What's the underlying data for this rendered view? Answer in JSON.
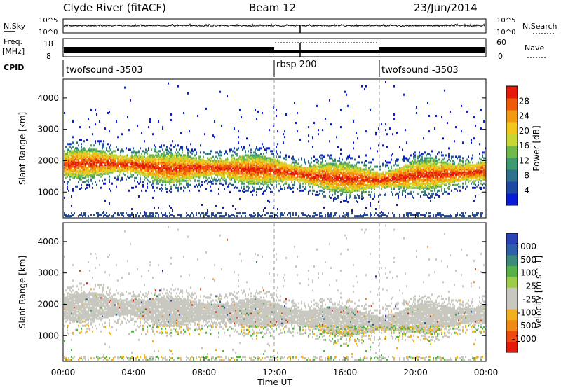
{
  "header": {
    "title": "Clyde River (fitACF)",
    "beam": "Beam 12",
    "date": "23/Jun/2014"
  },
  "noise_panel": {
    "left_label": "N.Sky",
    "left_ticks": [
      "10^5",
      "10^0"
    ],
    "right_label": "N.Search",
    "right_ticks": [
      "10^5",
      "10^0"
    ]
  },
  "freq_panel": {
    "left_label_1": "Freq.",
    "left_label_2": "[MHz]",
    "left_ticks": [
      "18",
      "8"
    ],
    "right_label": "Nave",
    "right_ticks": [
      "60",
      "0"
    ]
  },
  "cpid_panel": {
    "label": "CPID",
    "segments": [
      {
        "name": "twofsound -3503",
        "start_hour": 0,
        "end_hour": 12
      },
      {
        "name": "rbsp 200",
        "start_hour": 12,
        "end_hour": 18
      },
      {
        "name": "twofsound -3503",
        "start_hour": 18,
        "end_hour": 24
      }
    ]
  },
  "x_axis": {
    "label": "Time UT",
    "ticks": [
      "00:00",
      "04:00",
      "08:00",
      "12:00",
      "16:00",
      "20:00",
      "00:00"
    ],
    "range_hours": [
      0,
      24
    ]
  },
  "chart_data": [
    {
      "type": "heatmap",
      "title": "Power",
      "ylabel": "Slant Range [km]",
      "yticks": [
        1000,
        2000,
        3000,
        4000
      ],
      "ylim": [
        180,
        4600
      ],
      "colorbar_label": "Power [dB]",
      "colorbar_ticks": [
        4,
        8,
        12,
        16,
        20,
        24,
        28
      ],
      "colorbar_range": [
        0,
        32
      ],
      "colorbar_colors": [
        "#0a1bd6",
        "#1f4aa3",
        "#2f6f8f",
        "#3f9a6f",
        "#6fb84a",
        "#c8d634",
        "#f2c61c",
        "#f29a12",
        "#ee5a0a",
        "#e61a0a"
      ],
      "band_center_km": [
        [
          0,
          1850
        ],
        [
          2,
          1900
        ],
        [
          4,
          1850
        ],
        [
          6,
          1700
        ],
        [
          8,
          1750
        ],
        [
          10,
          1700
        ],
        [
          12,
          1650
        ],
        [
          14,
          1500
        ],
        [
          16,
          1400
        ],
        [
          18,
          1350
        ],
        [
          20,
          1500
        ],
        [
          22,
          1550
        ],
        [
          24,
          1650
        ]
      ]
    },
    {
      "type": "heatmap",
      "title": "Velocity",
      "ylabel": "Slant Range [km]",
      "yticks": [
        1000,
        2000,
        3000,
        4000
      ],
      "ylim": [
        180,
        4600
      ],
      "colorbar_label": "Velocity [m s^-1]",
      "colorbar_ticks": [
        1000,
        500,
        100,
        25,
        -25,
        -100,
        -500,
        -1000
      ],
      "colorbar_colors": [
        "#2a44b8",
        "#2f5fa8",
        "#3b8a7a",
        "#58b04a",
        "#9ccc4a",
        "#c8c8c0",
        "#c8c8c0",
        "#f0b020",
        "#ef8a14",
        "#ef4a10",
        "#e61a0a"
      ]
    }
  ]
}
